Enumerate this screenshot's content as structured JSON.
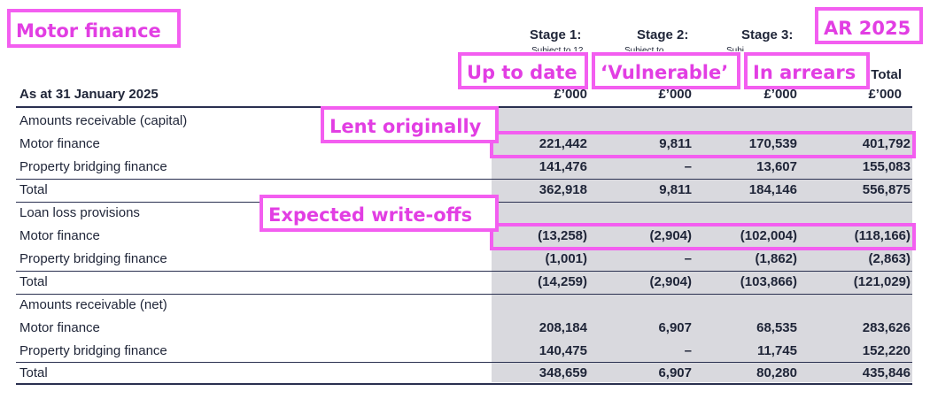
{
  "annotations": {
    "title": "Motor finance",
    "year": "AR 2025",
    "up_to_date": "Up to date",
    "vulnerable": "‘Vulnerable’",
    "in_arrears": "In arrears",
    "lent_originally": "Lent originally",
    "expected_write_offs": "Expected write-offs"
  },
  "table": {
    "as_at": "As at 31 January 2025",
    "stage_headers": [
      "Stage 1:",
      "Stage 2:",
      "Stage 3:"
    ],
    "stage_subtexts": [
      "Subject to 12",
      "Subject to",
      "Subject to"
    ],
    "total_header": "Total",
    "units": [
      "£’000",
      "£’000",
      "£’000",
      "£’000"
    ],
    "rows": [
      {
        "label": "Amounts receivable (capital)",
        "values": [
          "",
          "",
          "",
          ""
        ],
        "bold": false
      },
      {
        "label": "Motor finance",
        "values": [
          "221,442",
          "9,811",
          "170,539",
          "401,792"
        ],
        "bold": true
      },
      {
        "label": "Property bridging finance",
        "values": [
          "141,476",
          "–",
          "13,607",
          "155,083"
        ],
        "bold": true
      },
      {
        "label": "Total",
        "values": [
          "362,918",
          "9,811",
          "184,146",
          "556,875"
        ],
        "bold": true
      },
      {
        "label": "Loan loss provisions",
        "values": [
          "",
          "",
          "",
          ""
        ],
        "bold": false
      },
      {
        "label": "Motor finance",
        "values": [
          "(13,258)",
          "(2,904)",
          "(102,004)",
          "(118,166)"
        ],
        "bold": true
      },
      {
        "label": "Property bridging finance",
        "values": [
          "(1,001)",
          "–",
          "(1,862)",
          "(2,863)"
        ],
        "bold": true
      },
      {
        "label": "Total",
        "values": [
          "(14,259)",
          "(2,904)",
          "(103,866)",
          "(121,029)"
        ],
        "bold": true
      },
      {
        "label": "Amounts receivable (net)",
        "values": [
          "",
          "",
          "",
          ""
        ],
        "bold": false
      },
      {
        "label": "Motor finance",
        "values": [
          "208,184",
          "6,907",
          "68,535",
          "283,626"
        ],
        "bold": true
      },
      {
        "label": "Property bridging finance",
        "values": [
          "140,475",
          "–",
          "11,745",
          "152,220"
        ],
        "bold": true
      },
      {
        "label": "Total",
        "values": [
          "348,659",
          "6,907",
          "80,280",
          "435,846"
        ],
        "bold": true
      }
    ]
  },
  "colors": {
    "annotation": "#f35ef0",
    "annotation_text": "#e23ee3",
    "shade": "#d9d9de",
    "text": "#1f2538"
  }
}
